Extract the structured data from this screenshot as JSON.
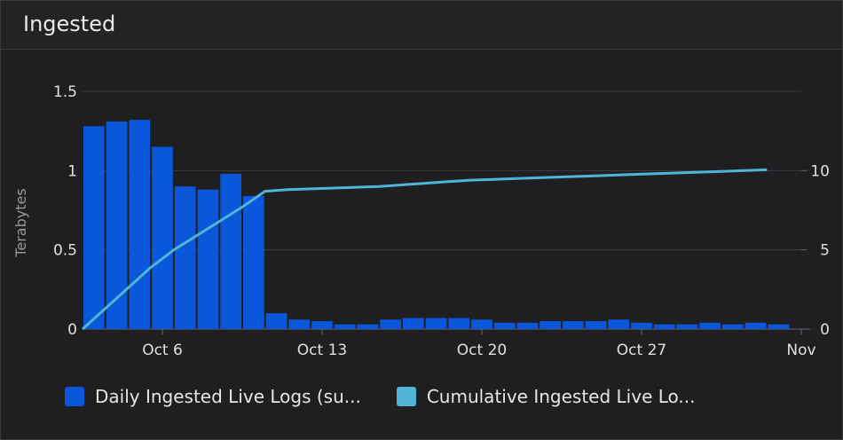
{
  "panel": {
    "title": "Ingested"
  },
  "colors": {
    "bar": "#0b57d9",
    "line": "#4fb4d6",
    "grid": "#3c3c40",
    "axis_text": "#e0e0e0",
    "ylabel": "#9a9a9a"
  },
  "chart_data": {
    "type": "bar",
    "ylabel": "Terabytes",
    "ylim": [
      0,
      1.5
    ],
    "y_ticks": [
      "0",
      "0.5",
      "1",
      "1.5"
    ],
    "y2lim": [
      0,
      15
    ],
    "y2_ticks": [
      "0",
      "5",
      "10"
    ],
    "x_ticks": [
      {
        "label": "Oct 6",
        "day": 6
      },
      {
        "label": "Oct 13",
        "day": 13
      },
      {
        "label": "Oct 20",
        "day": 20
      },
      {
        "label": "Oct 27",
        "day": 27
      },
      {
        "label": "Nov",
        "day": 34
      }
    ],
    "x_start_day": 2.5,
    "x_end_day": 34,
    "legend_position": "bottom",
    "series": [
      {
        "name": "Daily Ingested Live Logs (su...",
        "type": "bar",
        "axis": "left",
        "x": [
          3,
          4,
          5,
          6,
          7,
          8,
          9,
          10,
          11,
          12,
          13,
          14,
          15,
          16,
          17,
          18,
          19,
          20,
          21,
          22,
          23,
          24,
          25,
          26,
          27,
          28,
          29,
          30,
          31,
          32,
          33
        ],
        "values": [
          1.28,
          1.31,
          1.32,
          1.15,
          0.9,
          0.88,
          0.98,
          0.84,
          0.1,
          0.06,
          0.05,
          0.03,
          0.03,
          0.06,
          0.07,
          0.07,
          0.07,
          0.06,
          0.04,
          0.04,
          0.05,
          0.05,
          0.05,
          0.06,
          0.04,
          0.03,
          0.03,
          0.04,
          0.03,
          0.04,
          0.03
        ]
      },
      {
        "name": "Cumulative Ingested Live Lo...",
        "type": "line",
        "axis": "right",
        "x": [
          2.5,
          3.5,
          4.5,
          5.5,
          6.5,
          7.5,
          8.5,
          9.5,
          10.5,
          11.5,
          12.5,
          13.5,
          14.5,
          15.5,
          16.5,
          17.5,
          18.5,
          19.5,
          20.5,
          21.5,
          22.5,
          23.5,
          24.5,
          25.5,
          26.5,
          27.5,
          28.5,
          29.5,
          30.5,
          31.5,
          32.5
        ],
        "values": [
          0,
          1.3,
          2.6,
          3.9,
          5.0,
          5.9,
          6.8,
          7.7,
          8.7,
          8.8,
          8.85,
          8.9,
          8.95,
          9.0,
          9.1,
          9.2,
          9.3,
          9.4,
          9.45,
          9.5,
          9.55,
          9.6,
          9.65,
          9.7,
          9.75,
          9.8,
          9.85,
          9.9,
          9.95,
          10.0,
          10.05
        ]
      }
    ]
  }
}
